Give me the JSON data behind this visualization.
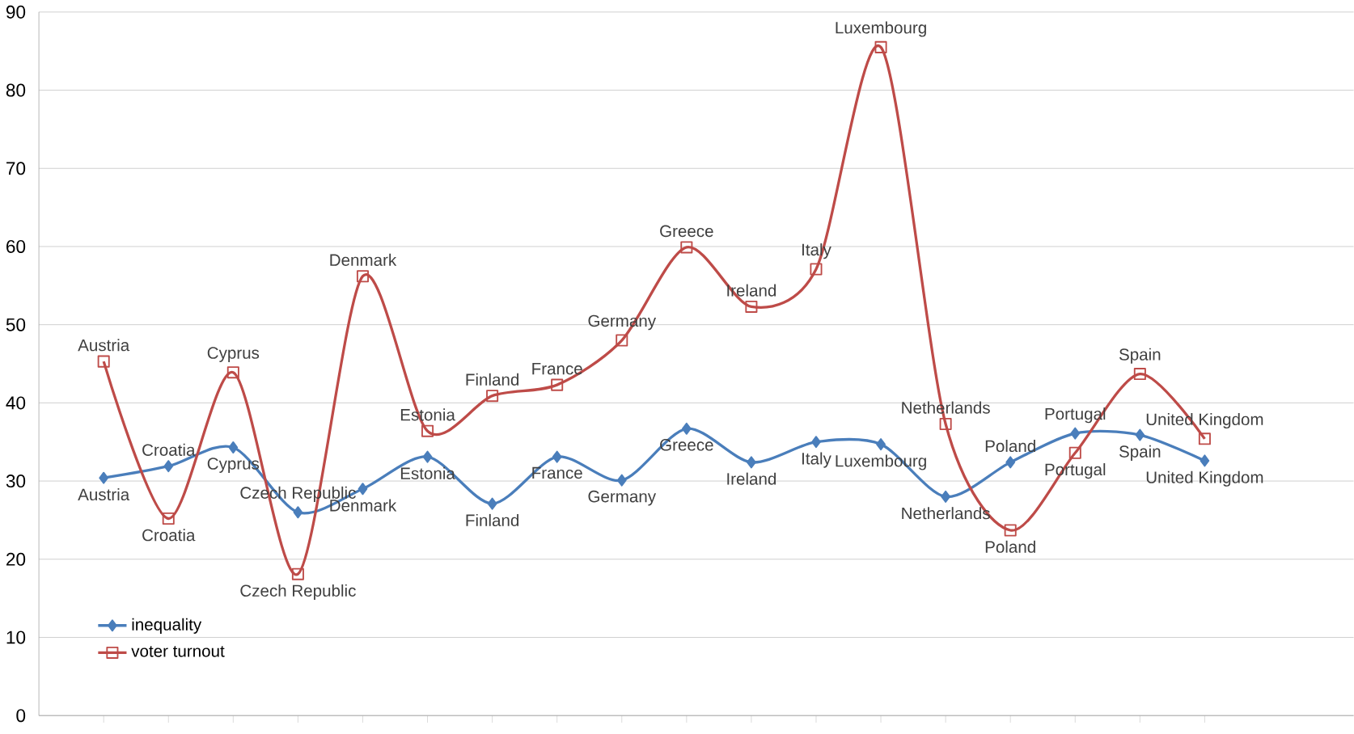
{
  "chart_data": {
    "type": "line",
    "categories": [
      "Austria",
      "Croatia",
      "Cyprus",
      "Czech Republic",
      "Denmark",
      "Estonia",
      "Finland",
      "France",
      "Germany",
      "Greece",
      "Ireland",
      "Italy",
      "Luxembourg",
      "Netherlands",
      "Poland",
      "Portugal",
      "Spain",
      "United Kingdom"
    ],
    "series": [
      {
        "name": "inequality",
        "color": "#4a7ebb",
        "marker": "diamond",
        "values": [
          30.4,
          31.9,
          34.3,
          26.0,
          29.0,
          33.1,
          27.1,
          33.1,
          30.1,
          36.7,
          32.4,
          35.0,
          34.7,
          28.0,
          32.4,
          36.1,
          35.9,
          32.6
        ]
      },
      {
        "name": "voter turnout",
        "color": "#be4b48",
        "marker": "square",
        "values": [
          45.3,
          25.2,
          43.9,
          18.1,
          56.2,
          36.4,
          40.9,
          42.3,
          48.0,
          59.9,
          52.3,
          57.1,
          85.5,
          37.3,
          23.7,
          33.6,
          43.7,
          35.4
        ]
      }
    ],
    "ylim": [
      0,
      90
    ],
    "yticks": [
      0,
      10,
      20,
      30,
      40,
      50,
      60,
      70,
      80,
      90
    ],
    "grid": "y",
    "legend": "bottom left",
    "tick_labels": "y",
    "line_style": "solid"
  }
}
